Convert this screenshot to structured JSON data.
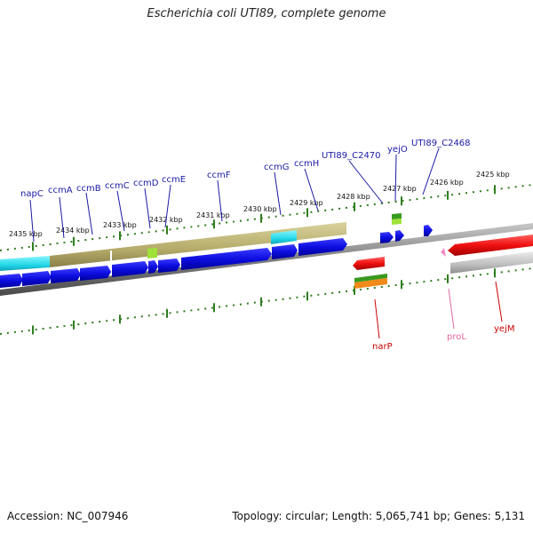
{
  "title": "Escherichia coli UTI89, complete genome",
  "footer": {
    "accession": "Accession: NC_007946",
    "topology": "Topology: circular; Length: 5,065,741 bp; Genes: 5,131"
  },
  "scale_labels": [
    "2435 kbp",
    "2434 kbp",
    "2433 kbp",
    "2432 kbp",
    "2431 kbp",
    "2430 kbp",
    "2429 kbp",
    "2428 kbp",
    "2427 kbp",
    "2426 kbp",
    "2425 kbp"
  ],
  "genes_top": [
    "napC",
    "ccmA",
    "ccmB",
    "ccmC",
    "ccmD",
    "ccmE",
    "ccmF",
    "ccmG",
    "ccmH",
    "UTI89_C2470",
    "yejO",
    "UTI89_C2468"
  ],
  "genes_bottom": [
    "narP",
    "proL",
    "yejM"
  ],
  "colors": {
    "label_top": "#1a1aa6",
    "label_red": "#cc0000",
    "label_pink": "#e06aa0",
    "backbone": "#808080",
    "tick": "#2e7d1e",
    "gene_blue": "#0d0de0",
    "gene_cyan": "#22d8e8",
    "gene_olive": "#b5ab6a",
    "gene_red": "#f01010",
    "gene_gray": "#bdbdbd",
    "gene_lime": "#9ee23a",
    "gene_green": "#3a9a20",
    "gene_orange": "#f08a18",
    "gene_pink": "#f08ac0"
  }
}
